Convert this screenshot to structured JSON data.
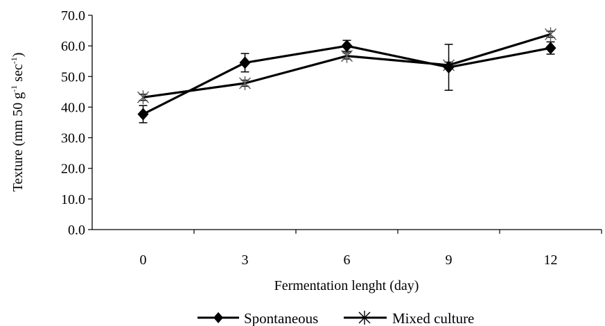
{
  "chart_data": {
    "type": "line",
    "xlabel": "Fermentation lenght (day)",
    "ylabel": {
      "base": "Texture (mm 50 g",
      "sup1": "-1",
      "mid": " sec",
      "sup2": "-1",
      "end": ")"
    },
    "x": [
      0,
      3,
      6,
      9,
      12
    ],
    "x_tick_labels": [
      "0",
      "3",
      "6",
      "9",
      "12"
    ],
    "y_tick_labels": [
      "0.0",
      "10.0",
      "20.0",
      "30.0",
      "40.0",
      "50.0",
      "60.0",
      "70.0"
    ],
    "ylim": [
      0,
      70
    ],
    "legend_position": "bottom",
    "series": [
      {
        "name": "Spontaneous",
        "marker": "diamond",
        "values": [
          37.7,
          54.5,
          60.0,
          53.0,
          59.3
        ],
        "error": [
          2.8,
          3.0,
          1.8,
          7.5,
          2.0
        ]
      },
      {
        "name": "Mixed culture",
        "marker": "asterisk",
        "values": [
          43.2,
          47.8,
          56.7,
          53.7,
          63.8
        ],
        "error": [
          1.0,
          1.0,
          1.0,
          1.0,
          1.0
        ]
      }
    ]
  }
}
